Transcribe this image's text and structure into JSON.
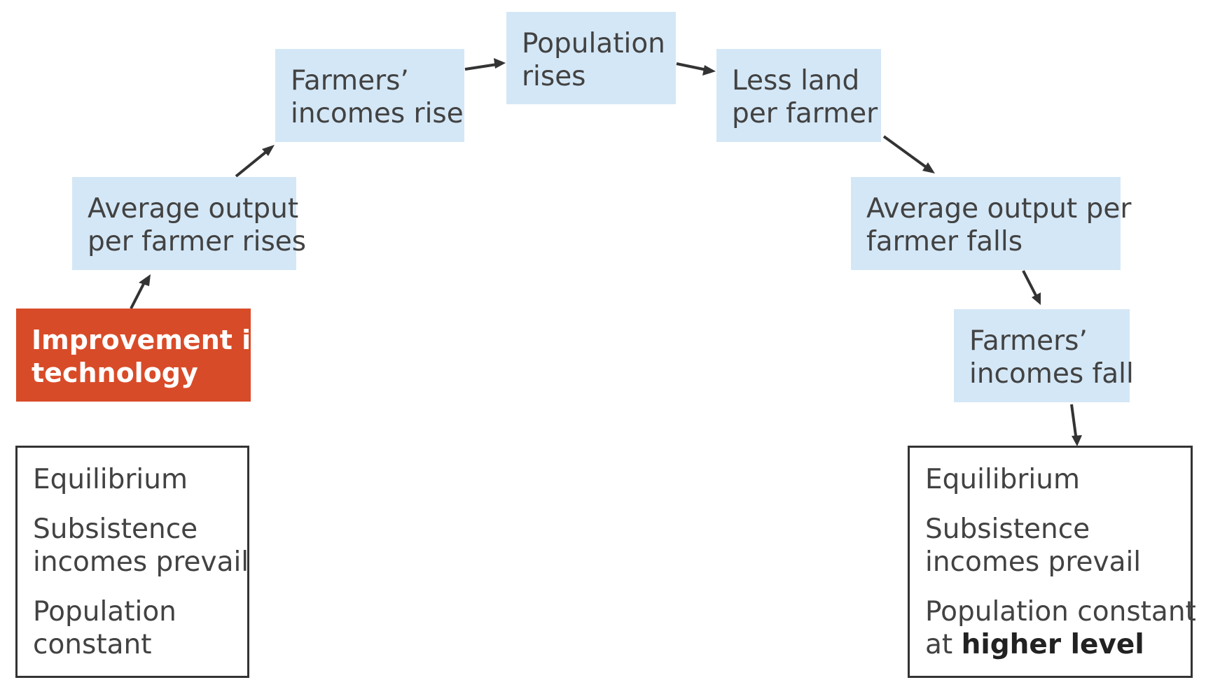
{
  "colors": {
    "box_fill": "#d4e7f6",
    "trigger_fill": "#d84b28",
    "text": "#424242",
    "arrow": "#333333"
  },
  "trigger": {
    "line1": "Improvement in",
    "line2": "technology"
  },
  "steps": {
    "output_rises": {
      "line1": "Average output",
      "line2": "per farmer rises"
    },
    "incomes_rise": {
      "line1": "Farmers’",
      "line2": "incomes rise"
    },
    "population_rises": {
      "line1": "Population",
      "line2": "rises"
    },
    "less_land": {
      "line1": "Less land",
      "line2": "per farmer"
    },
    "output_falls": {
      "line1": "Average output per",
      "line2": "farmer falls"
    },
    "incomes_fall": {
      "line1": "Farmers’",
      "line2": "incomes fall"
    }
  },
  "equilibrium_left": {
    "title": "Equilibrium",
    "subsistence_line1": "Subsistence",
    "subsistence_line2": "incomes prevail",
    "population_line1": "Population",
    "population_line2": "constant"
  },
  "equilibrium_right": {
    "title": "Equilibrium",
    "subsistence_line1": "Subsistence",
    "subsistence_line2": "incomes prevail",
    "population_line1": "Population constant",
    "population_prefix": "at ",
    "population_emphasis": "higher level"
  }
}
